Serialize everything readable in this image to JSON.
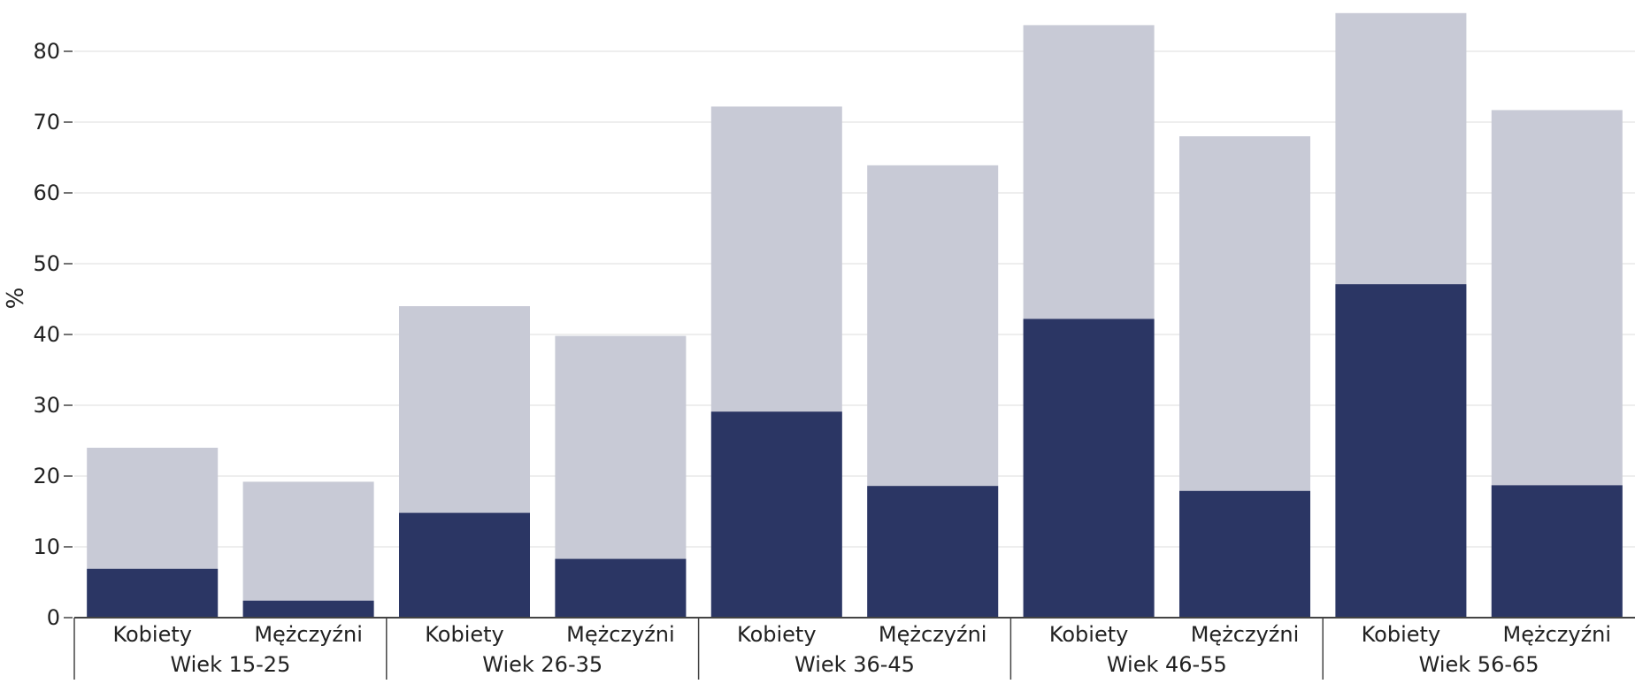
{
  "chart_data": {
    "type": "bar",
    "ylabel": "%",
    "ylim": [
      0,
      85
    ],
    "yticks": [
      0,
      10,
      20,
      30,
      40,
      50,
      60,
      70,
      80
    ],
    "grid": true,
    "groups": [
      {
        "label": "Wiek 15-25",
        "categories": [
          "Kobiety",
          "Mężczyźni"
        ]
      },
      {
        "label": "Wiek 26-35",
        "categories": [
          "Kobiety",
          "Mężczyźni"
        ]
      },
      {
        "label": "Wiek 36-45",
        "categories": [
          "Kobiety",
          "Mężczyźni"
        ]
      },
      {
        "label": "Wiek 46-55",
        "categories": [
          "Kobiety",
          "Mężczyźni"
        ]
      },
      {
        "label": "Wiek 56-65",
        "categories": [
          "Kobiety",
          "Mężczyźni"
        ]
      }
    ],
    "series": [
      {
        "color": "#C8CAD6",
        "values": [
          24.0,
          19.2,
          44.0,
          39.8,
          72.2,
          63.9,
          83.7,
          68.0,
          85.4,
          71.7
        ]
      },
      {
        "color": "#2B3664",
        "values": [
          6.9,
          2.4,
          14.8,
          8.3,
          29.1,
          18.6,
          42.2,
          17.9,
          47.1,
          18.7
        ]
      }
    ]
  }
}
